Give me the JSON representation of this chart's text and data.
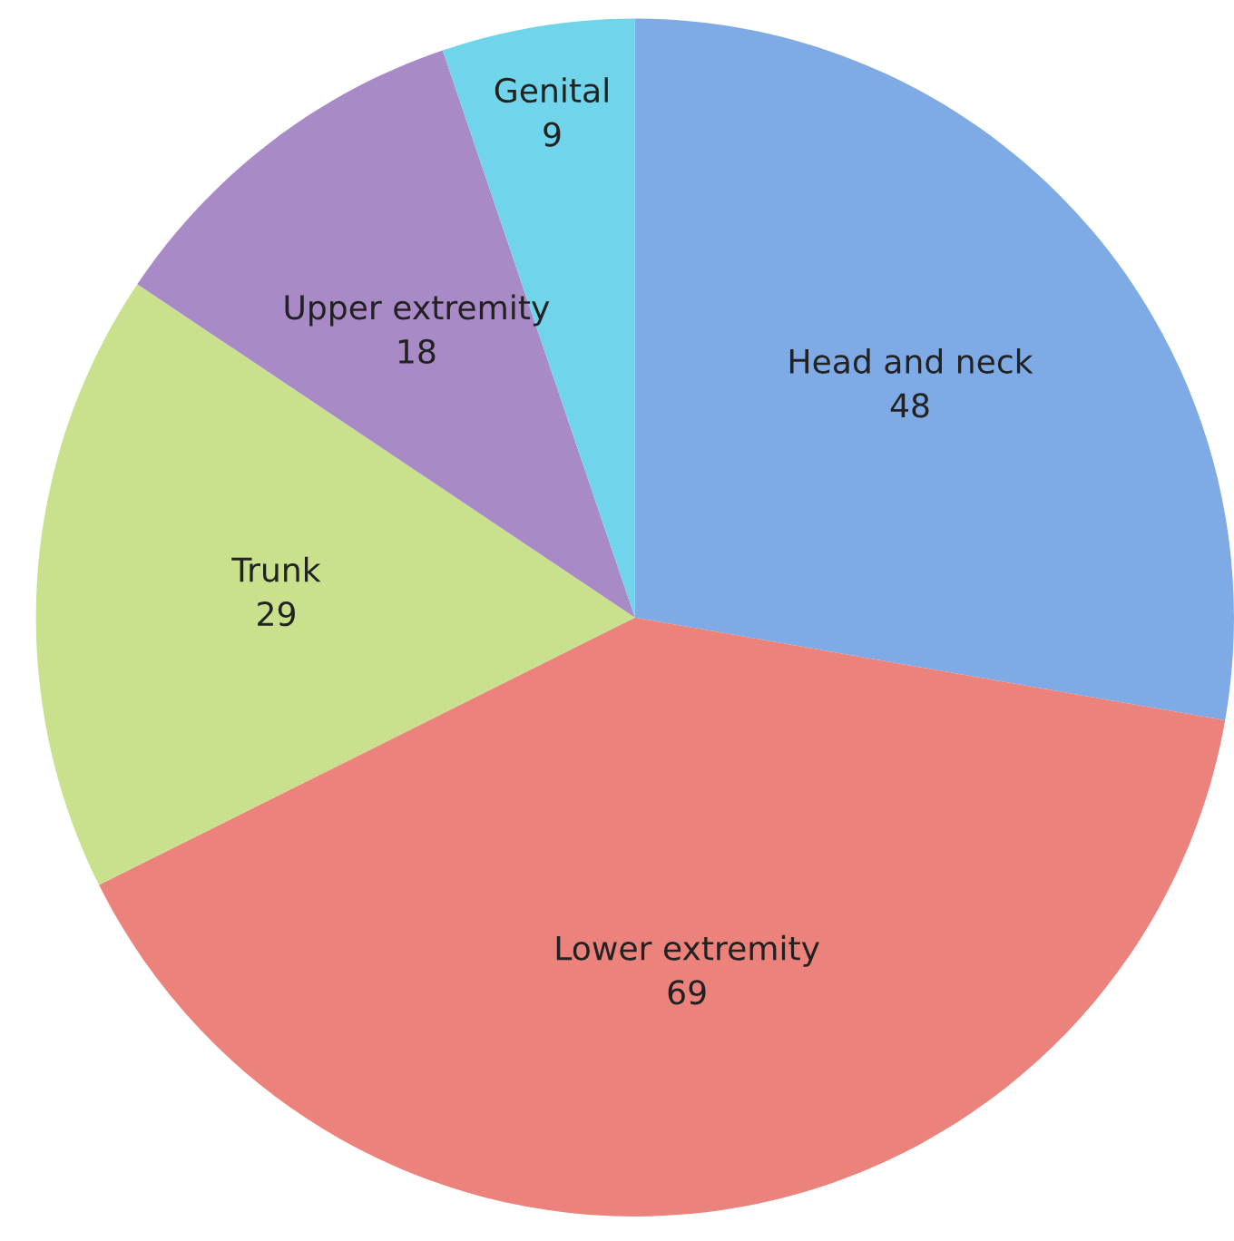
{
  "chart_data": {
    "type": "pie",
    "categories": [
      "Head and neck",
      "Lower extremity",
      "Trunk",
      "Upper extremity",
      "Genital"
    ],
    "values": [
      48,
      69,
      29,
      18,
      9
    ],
    "colors": [
      "#7eaae6",
      "#ec827c",
      "#c9e08c",
      "#a88ac6",
      "#70d4ea"
    ],
    "data_labels": true
  }
}
